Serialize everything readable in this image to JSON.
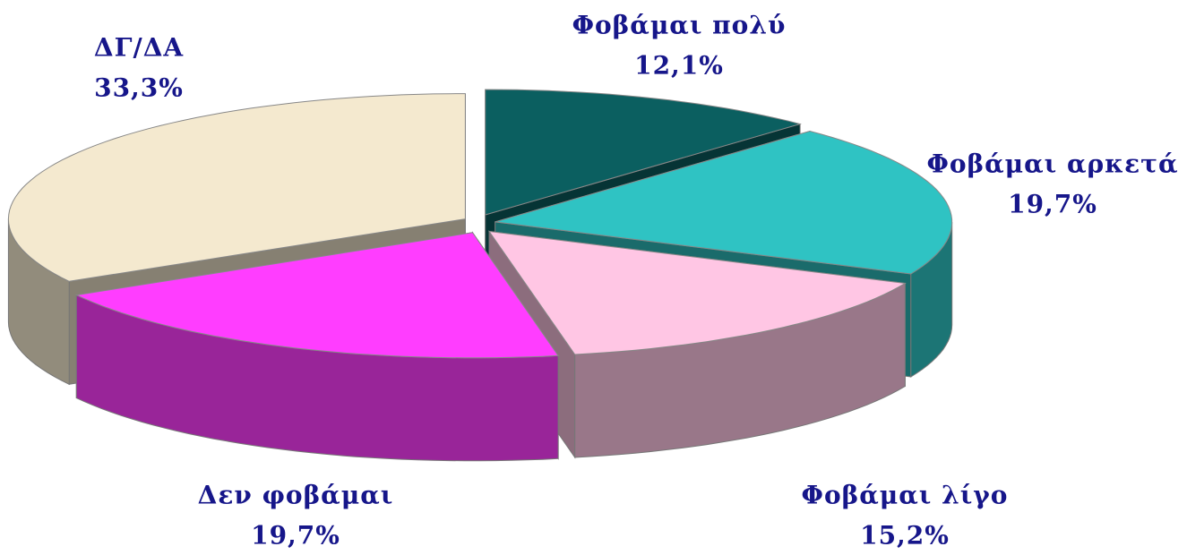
{
  "chart_data": {
    "type": "pie3d",
    "categories": [
      "Φοβάμαι πολύ",
      "Φοβάμαι αρκετά",
      "Φοβάμαι λίγο",
      "Δεν φοβάμαι",
      "ΔΓ/ΔΑ"
    ],
    "values": [
      12.1,
      19.7,
      15.2,
      19.7,
      33.3
    ],
    "value_labels": [
      "12,1%",
      "19,7%",
      "15,2%",
      "19,7%",
      "33,3%"
    ],
    "colors": [
      "#0b5f60",
      "#2fc3c3",
      "#ffc6e4",
      "#ff3dff",
      "#f4e9cf"
    ]
  }
}
